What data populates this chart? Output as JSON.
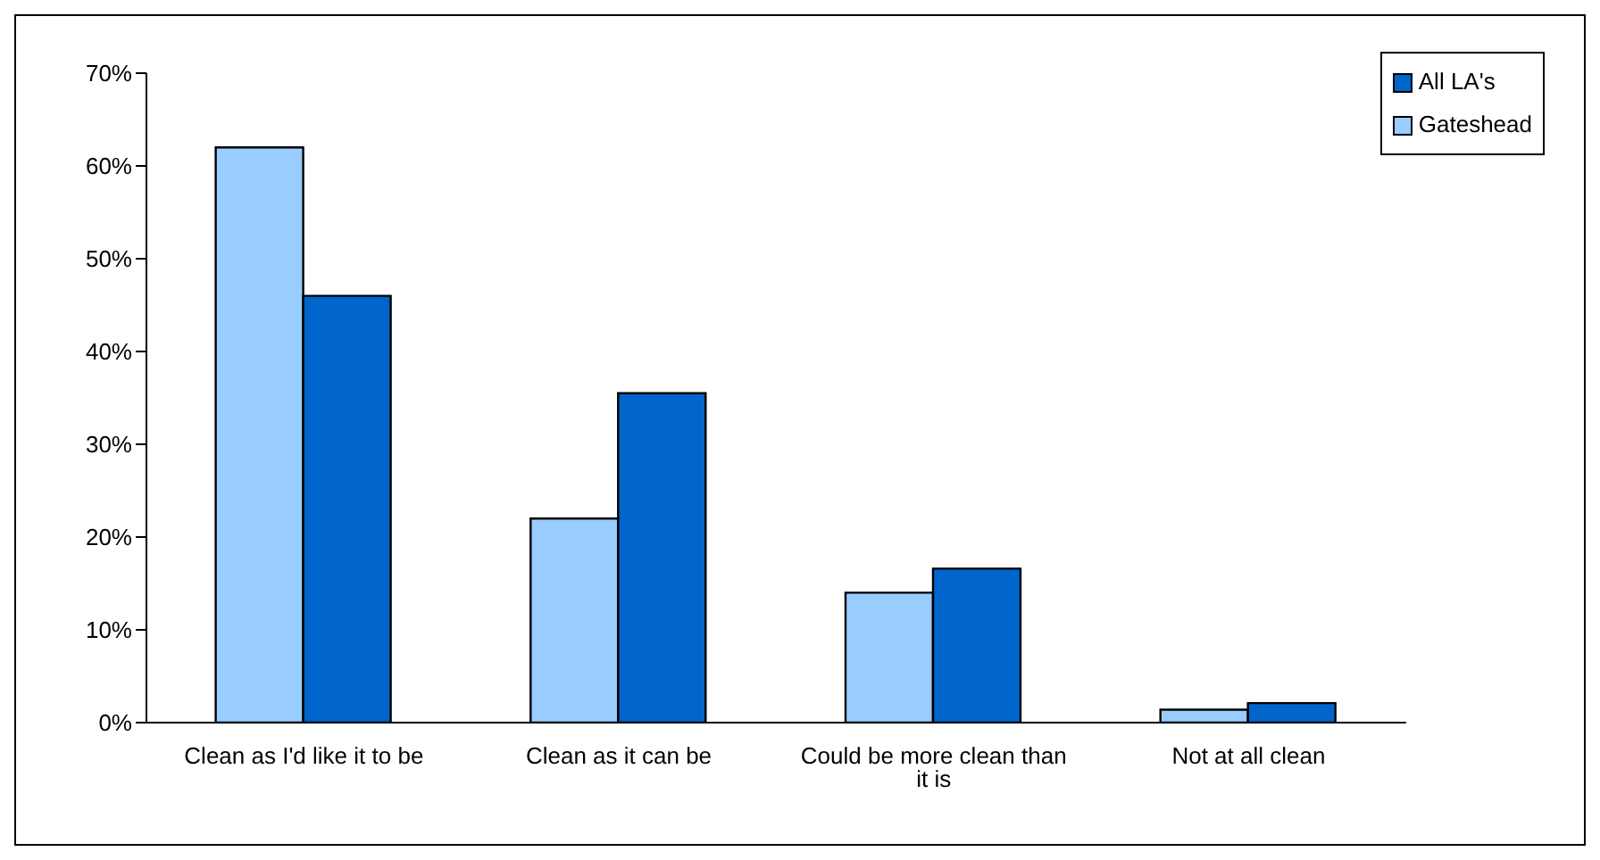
{
  "chart_data": {
    "type": "bar",
    "categories": [
      "Clean as I'd like it to be",
      "Clean as it can be",
      "Could be more clean than it is",
      "Not at all clean"
    ],
    "series": [
      {
        "name": "Gateshead",
        "color": "#99ccff",
        "values": [
          62,
          22,
          14,
          1.4
        ]
      },
      {
        "name": "All LA's",
        "color": "#0066cc",
        "values": [
          46,
          35.5,
          16.6,
          2.1
        ]
      }
    ],
    "ylim": [
      0,
      70
    ],
    "yticks": [
      {
        "value": 0,
        "label": "0%"
      },
      {
        "value": 10,
        "label": "10%"
      },
      {
        "value": 20,
        "label": "20%"
      },
      {
        "value": 30,
        "label": "30%"
      },
      {
        "value": 40,
        "label": "40%"
      },
      {
        "value": 50,
        "label": "50%"
      },
      {
        "value": 60,
        "label": "60%"
      },
      {
        "value": 70,
        "label": "70%"
      }
    ],
    "grid": false,
    "legend": "top right"
  }
}
